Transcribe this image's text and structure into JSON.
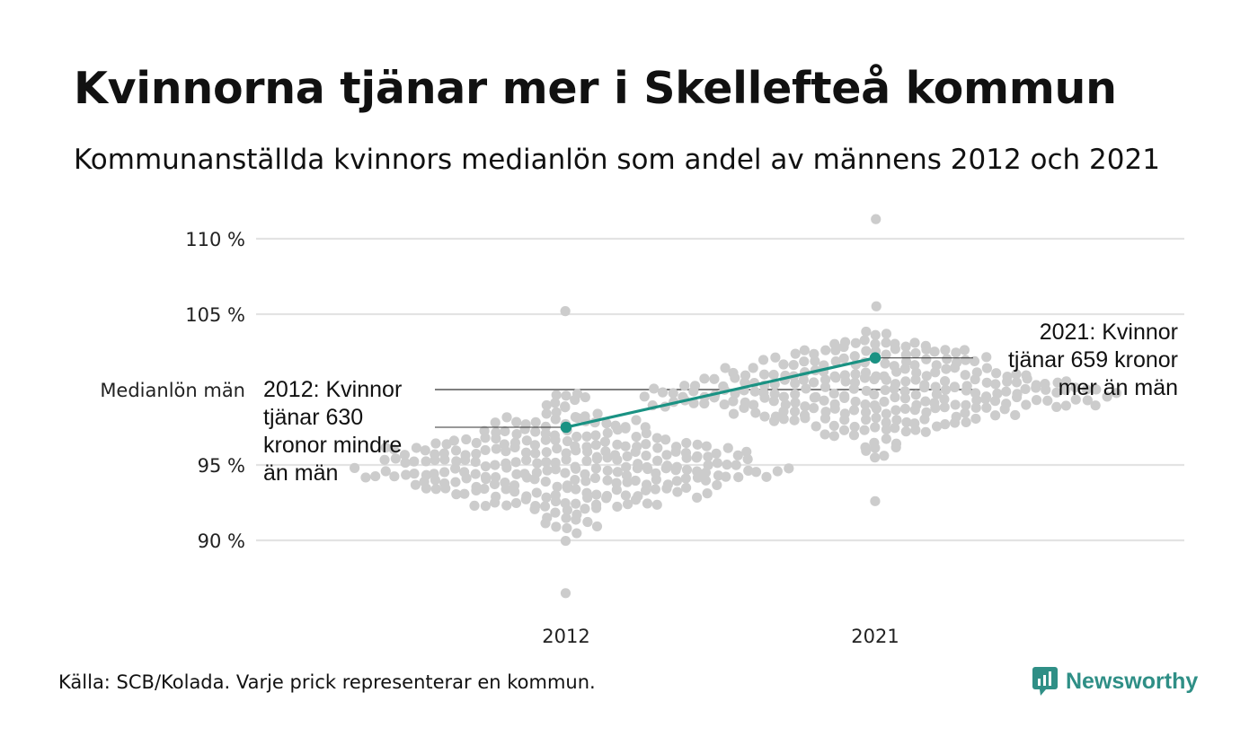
{
  "title": "Kvinnorna tjänar mer i Skellefteå kommun",
  "subtitle": "Kommunanställda kvinnors medianlön som andel av männens 2012 och 2021",
  "footer": "Källa: SCB/Kolada. Varje prick representerar en kommun.",
  "brand": {
    "name": "Newsworthy",
    "icon": "newsworthy-logo-icon",
    "color": "#2f8f86"
  },
  "colors": {
    "dots": "#cccccc",
    "highlight": "#1a9283",
    "grid": "#e3e3e3",
    "reference": "#333333"
  },
  "chart_data": {
    "type": "scatter",
    "style": "beeswarm",
    "title": "",
    "xlabel": "",
    "ylabel": "",
    "categories": [
      "2012",
      "2021"
    ],
    "ylim": [
      85,
      112
    ],
    "yticks": [
      {
        "value": 90,
        "label": "90 %"
      },
      {
        "value": 95,
        "label": "95 %"
      },
      {
        "value": 100,
        "label": "Medianlön män"
      },
      {
        "value": 105,
        "label": "105 %"
      },
      {
        "value": 110,
        "label": "110 %"
      }
    ],
    "grid": true,
    "legend": "none",
    "reference_line": {
      "value": 100,
      "label": "Medianlön män"
    },
    "distributions": [
      {
        "category": "2012",
        "count": 290,
        "median": 95.3,
        "min": 86.5,
        "max": 105.2,
        "spread": 2.6
      },
      {
        "category": "2021",
        "count": 290,
        "median": 100.0,
        "min": 92.6,
        "max": 111.3,
        "spread": 2.4
      }
    ],
    "highlight": {
      "name": "Skellefteå",
      "values": [
        {
          "category": "2012",
          "y": 97.5
        },
        {
          "category": "2021",
          "y": 102.1
        }
      ]
    },
    "annotations": [
      {
        "category": "2012",
        "lines": [
          "2012: Kvinnor",
          "tjänar 630",
          "kronor mindre",
          "än män"
        ]
      },
      {
        "category": "2021",
        "lines": [
          "2021: Kvinnor",
          "tjänar 659 kronor",
          "mer än män"
        ]
      }
    ]
  }
}
